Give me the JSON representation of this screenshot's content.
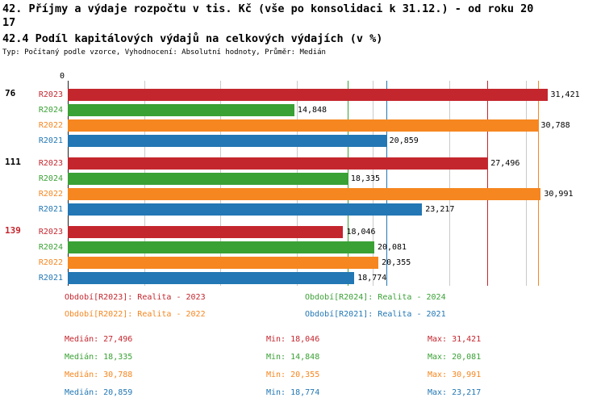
{
  "header": {
    "title_line1": "42. Příjmy a výdaje rozpočtu v tis. Kč (vše po konsolidaci k 31.12.) - od roku 20",
    "title_line2": "17",
    "subtitle": "42.4 Podíl kapitálových výdajů na celkových výdajích (v %)",
    "meta": "Typ: Počítaný podle vzorce, Vyhodnocení: Absolutní hodnoty, Průměr: Medián"
  },
  "colors": {
    "grid": "#c9c9c9",
    "axis": "#222222"
  },
  "chart_data": {
    "type": "bar",
    "orientation": "horizontal",
    "title": "42.4 Podíl kapitálových výdajů na celkových výdajích (v %)",
    "unit": "%",
    "xlim": [
      0,
      31.5
    ],
    "gridline_step": 5,
    "legend_position": "bottom",
    "axis": {
      "zero_label": "0"
    },
    "categories": [
      "76",
      "111",
      "139"
    ],
    "category_colors": [
      "#000000",
      "#000000",
      "#c4262e"
    ],
    "series": [
      {
        "name": "R2023",
        "color": "#c4262e",
        "values": [
          31.421,
          27.496,
          18.046
        ],
        "displays": [
          "31,421",
          "27,496",
          "18,046"
        ],
        "median": 27.496
      },
      {
        "name": "R2024",
        "color": "#3aa135",
        "values": [
          14.848,
          18.335,
          20.081
        ],
        "displays": [
          "14,848",
          "18,335",
          "20,081"
        ],
        "median": 18.335
      },
      {
        "name": "R2022",
        "color": "#f6861f",
        "values": [
          30.788,
          30.991,
          20.355
        ],
        "displays": [
          "30,788",
          "30,991",
          "20,355"
        ],
        "median": 30.788
      },
      {
        "name": "R2021",
        "color": "#2277b4",
        "values": [
          20.859,
          23.217,
          18.774
        ],
        "displays": [
          "20,859",
          "23,217",
          "18,774"
        ],
        "median": 20.859
      }
    ]
  },
  "legend": [
    {
      "series": "R2023",
      "color": "#c4262e",
      "label": "Období[R2023]: Realita - 2023"
    },
    {
      "series": "R2024",
      "color": "#3aa135",
      "label": "Období[R2024]: Realita - 2024"
    },
    {
      "series": "R2022",
      "color": "#f6861f",
      "label": "Období[R2022]: Realita - 2022"
    },
    {
      "series": "R2021",
      "color": "#2277b4",
      "label": "Období[R2021]: Realita - 2021"
    }
  ],
  "stats": [
    {
      "series": "R2023",
      "color": "#c4262e",
      "median": "Medián: 27,496",
      "min": "Min: 18,046",
      "max": "Max: 31,421"
    },
    {
      "series": "R2024",
      "color": "#3aa135",
      "median": "Medián: 18,335",
      "min": "Min: 14,848",
      "max": "Max: 20,081"
    },
    {
      "series": "R2022",
      "color": "#f6861f",
      "median": "Medián: 30,788",
      "min": "Min: 20,355",
      "max": "Max: 30,991"
    },
    {
      "series": "R2021",
      "color": "#2277b4",
      "median": "Medián: 20,859",
      "min": "Min: 18,774",
      "max": "Max: 23,217"
    }
  ]
}
